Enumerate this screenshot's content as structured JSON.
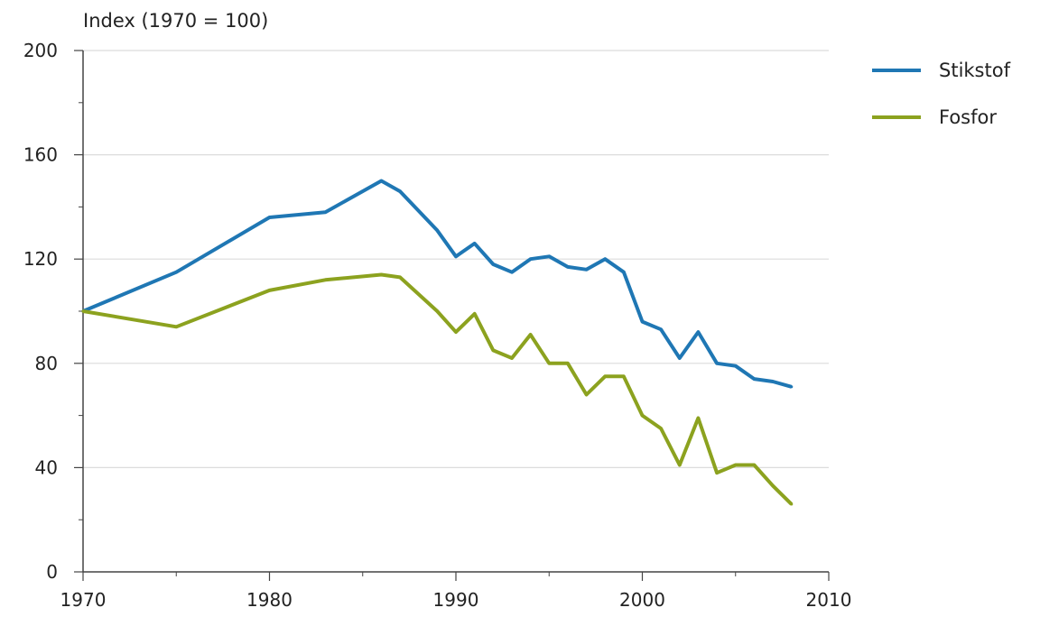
{
  "chart_data": {
    "type": "line",
    "ylabel": "Index (1970 = 100)",
    "xlim": [
      1970,
      2010
    ],
    "ylim": [
      0,
      200
    ],
    "x_ticks": [
      1970,
      1980,
      1990,
      2000,
      2010
    ],
    "y_ticks": [
      0,
      40,
      80,
      120,
      160,
      200
    ],
    "grid": "horizontal",
    "legend_position": "top-right",
    "series": [
      {
        "name": "Stikstof",
        "color": "#1f77b4",
        "points": [
          [
            1970,
            100
          ],
          [
            1975,
            115
          ],
          [
            1980,
            136
          ],
          [
            1983,
            138
          ],
          [
            1986,
            150
          ],
          [
            1987,
            146
          ],
          [
            1989,
            131
          ],
          [
            1990,
            121
          ],
          [
            1991,
            126
          ],
          [
            1992,
            118
          ],
          [
            1993,
            115
          ],
          [
            1994,
            120
          ],
          [
            1995,
            121
          ],
          [
            1996,
            117
          ],
          [
            1997,
            116
          ],
          [
            1998,
            120
          ],
          [
            1999,
            115
          ],
          [
            2000,
            96
          ],
          [
            2001,
            93
          ],
          [
            2002,
            82
          ],
          [
            2003,
            92
          ],
          [
            2004,
            80
          ],
          [
            2005,
            79
          ],
          [
            2006,
            74
          ],
          [
            2007,
            73
          ],
          [
            2008,
            71
          ]
        ]
      },
      {
        "name": "Fosfor",
        "color": "#8ca21f",
        "points": [
          [
            1970,
            100
          ],
          [
            1975,
            94
          ],
          [
            1980,
            108
          ],
          [
            1983,
            112
          ],
          [
            1986,
            114
          ],
          [
            1987,
            113
          ],
          [
            1989,
            100
          ],
          [
            1990,
            92
          ],
          [
            1991,
            99
          ],
          [
            1992,
            85
          ],
          [
            1993,
            82
          ],
          [
            1994,
            91
          ],
          [
            1995,
            80
          ],
          [
            1996,
            80
          ],
          [
            1997,
            68
          ],
          [
            1998,
            75
          ],
          [
            1999,
            75
          ],
          [
            2000,
            60
          ],
          [
            2001,
            55
          ],
          [
            2002,
            41
          ],
          [
            2003,
            59
          ],
          [
            2004,
            38
          ],
          [
            2005,
            41
          ],
          [
            2006,
            41
          ],
          [
            2007,
            33
          ],
          [
            2008,
            26
          ]
        ]
      }
    ]
  }
}
